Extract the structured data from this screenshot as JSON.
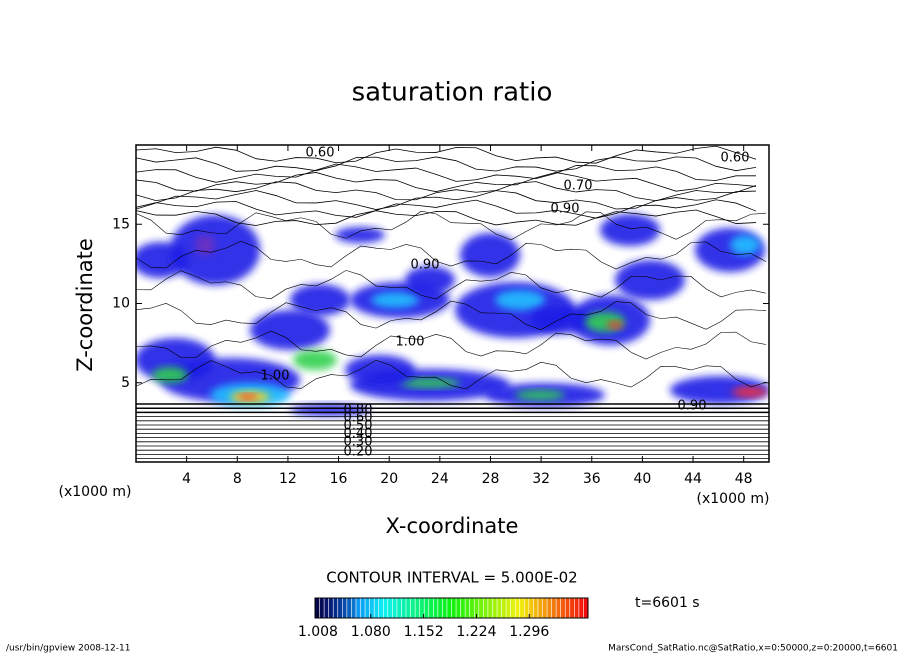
{
  "chart_data": {
    "type": "contour",
    "title": "saturation ratio",
    "x_label": "X-coordinate",
    "y_label": "Z-coordinate",
    "x_unit": "(x1000 m)",
    "xlim": [
      0,
      50
    ],
    "xticks": [
      4,
      8,
      12,
      16,
      20,
      24,
      28,
      32,
      36,
      40,
      44,
      48
    ],
    "ylim": [
      0,
      20
    ],
    "yticks": [
      5,
      10,
      15
    ],
    "contour_labels": [
      "0.60",
      "0.60",
      "0.70",
      "0.90",
      "0.90",
      "1.00",
      "1.00",
      "0.90",
      "0.80",
      "0.60",
      "0.50",
      "0.40",
      "0.30",
      "0.20"
    ],
    "annotation": "CONTOUR INTERVAL = 5.000E-02",
    "time_label": "t=6601 s",
    "colorbar": {
      "clim": [
        1.004,
        1.376
      ],
      "ticks": [
        {
          "value": 1.008,
          "label": "1.008"
        },
        {
          "value": 1.08,
          "label": "1.080"
        },
        {
          "value": 1.152,
          "label": "1.152"
        },
        {
          "value": 1.224,
          "label": "1.224"
        },
        {
          "value": 1.296,
          "label": "1.296"
        }
      ]
    },
    "footer_left": "/usr/bin/gpview   2008-12-11",
    "footer_right": "MarsCond_SatRatio.nc@SatRatio,x=0:50000,z=0:20000,t=6601"
  }
}
